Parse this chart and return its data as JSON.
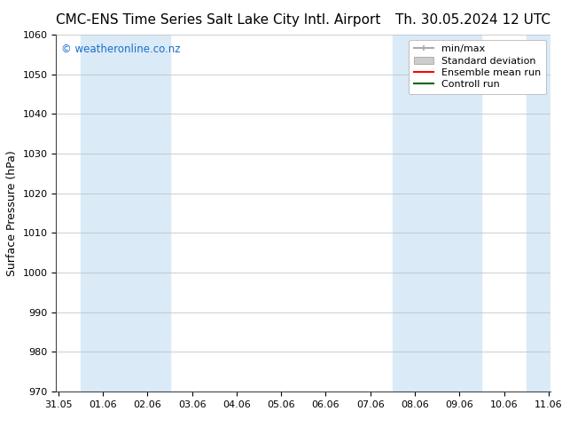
{
  "title_left": "CMC-ENS Time Series Salt Lake City Intl. Airport",
  "title_right": "Th. 30.05.2024 12 UTC",
  "ylabel": "Surface Pressure (hPa)",
  "ylim": [
    970,
    1060
  ],
  "yticks": [
    970,
    980,
    990,
    1000,
    1010,
    1020,
    1030,
    1040,
    1050,
    1060
  ],
  "xtick_labels": [
    "31.05",
    "01.06",
    "02.06",
    "03.06",
    "04.06",
    "05.06",
    "06.06",
    "07.06",
    "08.06",
    "09.06",
    "10.06",
    "11.06"
  ],
  "xtick_positions": [
    0,
    1,
    2,
    3,
    4,
    5,
    6,
    7,
    8,
    9,
    10,
    11
  ],
  "xlim_start": -0.05,
  "xlim_end": 11.05,
  "shaded_bands": [
    {
      "x_start": 0.5,
      "x_end": 2.5
    },
    {
      "x_start": 7.5,
      "x_end": 9.5
    },
    {
      "x_start": 10.5,
      "x_end": 11.05
    }
  ],
  "shade_color": "#daeaf7",
  "background_color": "#ffffff",
  "watermark_text": "© weatheronline.co.nz",
  "watermark_color": "#1a6fcc",
  "legend_entries": [
    {
      "label": "min/max",
      "color": "#aaaaaa",
      "lw": 1.5,
      "style": "minmax"
    },
    {
      "label": "Standard deviation",
      "color": "#cccccc",
      "lw": 8,
      "style": "box"
    },
    {
      "label": "Ensemble mean run",
      "color": "#ff0000",
      "lw": 1.5,
      "style": "line"
    },
    {
      "label": "Controll run",
      "color": "#006600",
      "lw": 1.5,
      "style": "line"
    }
  ],
  "title_fontsize": 11,
  "tick_label_fontsize": 8,
  "ylabel_fontsize": 9,
  "legend_fontsize": 8,
  "font_family": "DejaVu Sans"
}
